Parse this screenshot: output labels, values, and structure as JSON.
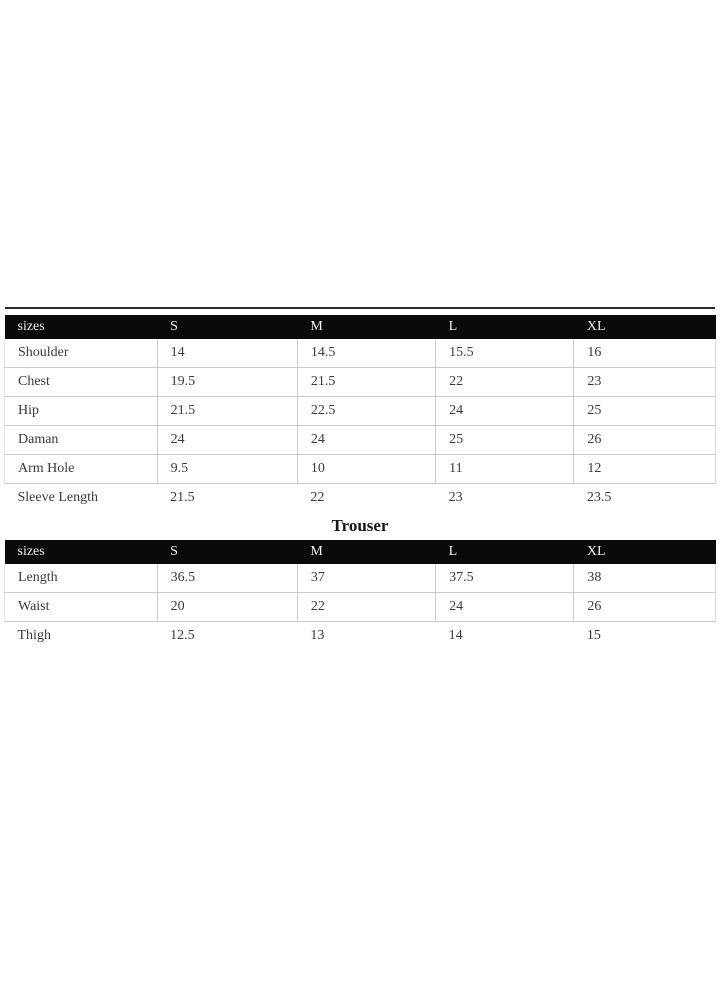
{
  "colors": {
    "header_bg": "#0a0a0a",
    "header_text": "#f2f2f2",
    "cell_text": "#3b3b3b",
    "grid_line": "#cccccc",
    "top_rule": "#2b2b2b",
    "page_bg": "#ffffff"
  },
  "size_chart": {
    "shirt_table": {
      "columns": [
        "sizes",
        "S",
        "M",
        "L",
        "XL"
      ],
      "rows": [
        {
          "label": "Shoulder",
          "values": [
            "14",
            "14.5",
            "15.5",
            "16"
          ]
        },
        {
          "label": "Chest",
          "values": [
            "19.5",
            "21.5",
            "22",
            "23"
          ]
        },
        {
          "label": "Hip",
          "values": [
            "21.5",
            "22.5",
            "24",
            "25"
          ]
        },
        {
          "label": "Daman",
          "values": [
            "24",
            "24",
            "25",
            "26"
          ]
        },
        {
          "label": "Arm Hole",
          "values": [
            "9.5",
            "10",
            "11",
            "12"
          ]
        },
        {
          "label": "Sleeve Length",
          "values": [
            "21.5",
            "22",
            "23",
            "23.5"
          ]
        }
      ]
    },
    "trouser_title": "Trouser",
    "trouser_table": {
      "columns": [
        "sizes",
        "S",
        "M",
        "L",
        "XL"
      ],
      "rows": [
        {
          "label": "Length",
          "values": [
            "36.5",
            "37",
            "37.5",
            "38"
          ]
        },
        {
          "label": "Waist",
          "values": [
            "20",
            "22",
            "24",
            "26"
          ]
        },
        {
          "label": "Thigh",
          "values": [
            "12.5",
            "13",
            "14",
            "15"
          ]
        }
      ]
    }
  }
}
